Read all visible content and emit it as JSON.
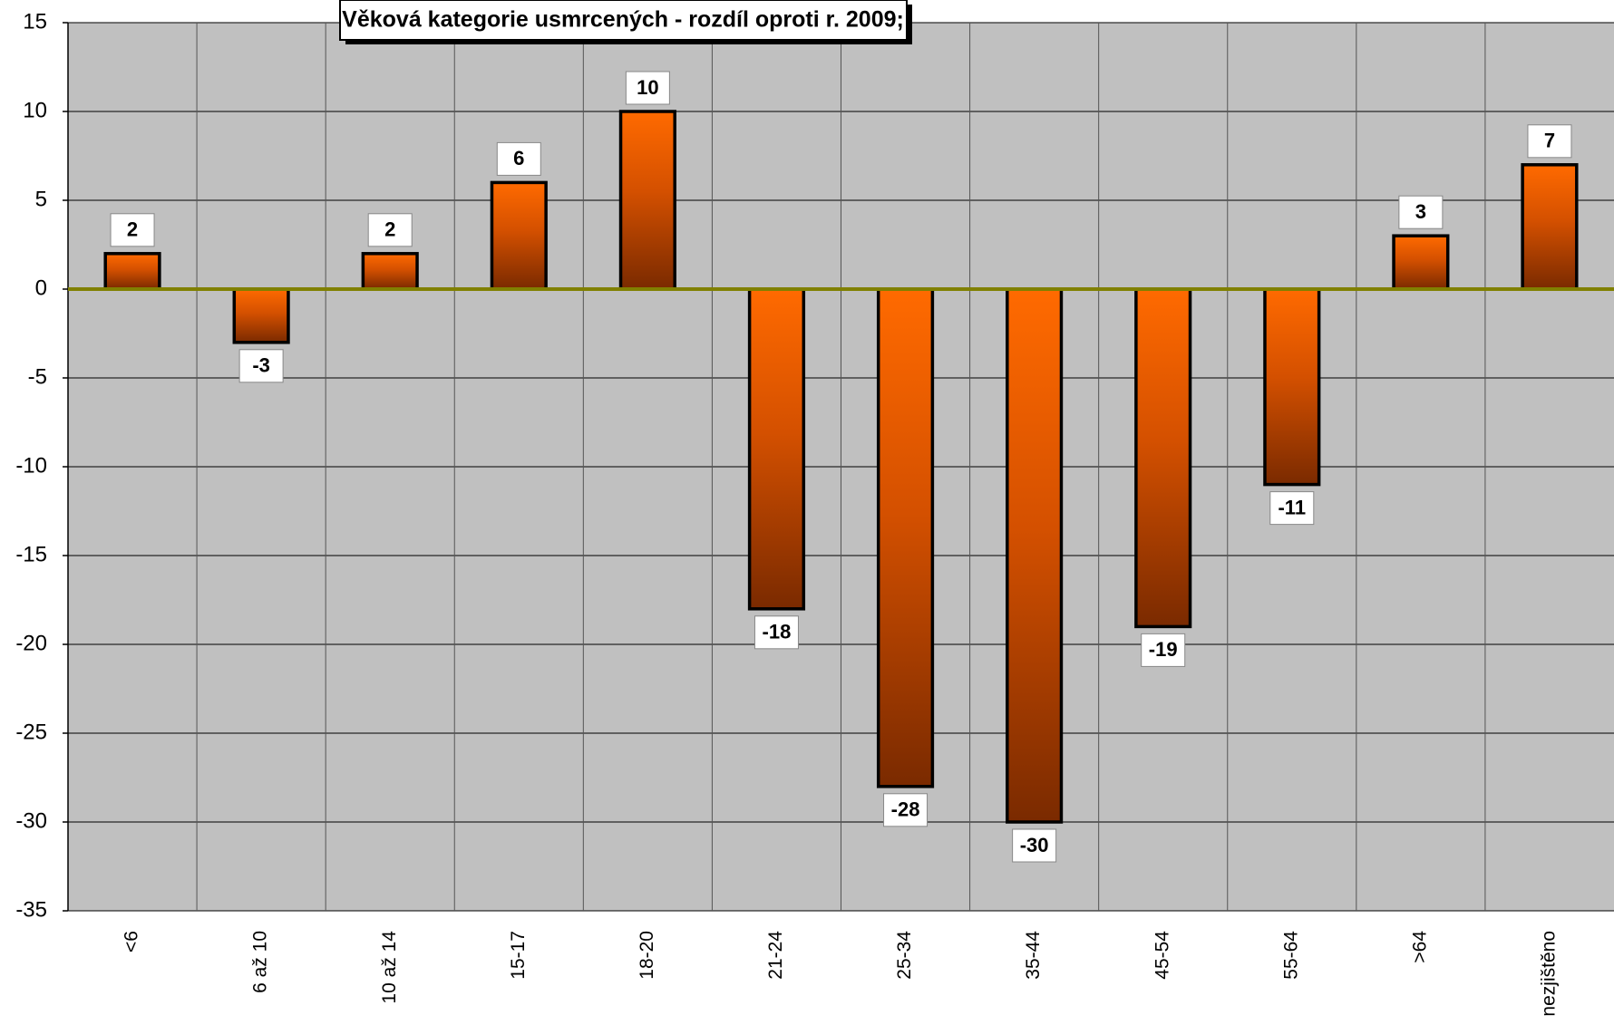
{
  "chart_data": {
    "type": "bar",
    "title": "Věková kategorie usmrcených -  rozdíl oproti r. 2009;",
    "categories": [
      "<6",
      "6 až 10",
      "10 až 14",
      "15-17",
      "18-20",
      "21-24",
      "25-34",
      "35-44",
      "45-54",
      "55-64",
      ">64",
      "nezjištěno"
    ],
    "values": [
      2,
      -3,
      2,
      6,
      10,
      -18,
      -28,
      -30,
      -19,
      -11,
      3,
      7
    ],
    "color": "#ff6600",
    "ylim": [
      -35,
      15
    ],
    "yticks": [
      -35,
      -30,
      -25,
      -20,
      -15,
      -10,
      -5,
      0,
      5,
      10,
      15
    ],
    "grid": true
  }
}
